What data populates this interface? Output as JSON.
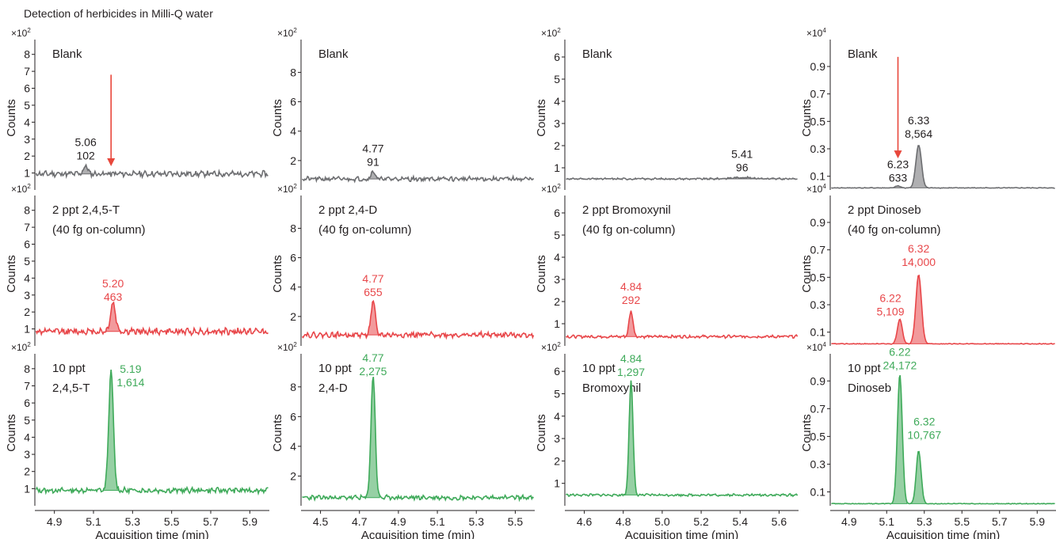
{
  "figure_title": "Detection of herbicides in Milli-Q water",
  "ylabel": "Counts",
  "xlabel": "Acquisition time (min)",
  "colors": {
    "blank": "#6d6e71",
    "low": "#e8474a",
    "high": "#3faa5a",
    "arrow": "#e8473b",
    "text": "#231f20"
  },
  "chart_data": [
    {
      "type": "line",
      "column": 0,
      "compound": "2,4,5-T",
      "xticks": [
        "4.9",
        "5.1",
        "5.3",
        "5.5",
        "5.7",
        "5.9"
      ],
      "xlim": [
        4.8,
        6.0
      ],
      "multiplier_label": "×10",
      "multiplier_exp": "2",
      "ylim": [
        0,
        8.5
      ],
      "yticks": [
        "1",
        "2",
        "3",
        "4",
        "5",
        "6",
        "7",
        "8"
      ],
      "rows": [
        {
          "label": [
            "Blank"
          ],
          "series": "blank",
          "baseline": 0.95,
          "noise": 0.13,
          "seed": 11,
          "peaks": [
            {
              "rt": 5.06,
              "height": 0.5,
              "width": 0.01,
              "value": "102",
              "label_at": [
                5.06,
                2.6
              ]
            }
          ],
          "peak_labels": [
            {
              "rt": "5.06",
              "area": "102"
            }
          ],
          "arrow": {
            "x": 5.19,
            "from": 6.8,
            "to": 1.4
          }
        },
        {
          "label": [
            "2 ppt 2,4,5-T",
            "(40 fg on-column)"
          ],
          "series": "low",
          "baseline": 0.85,
          "noise": 0.15,
          "seed": 12,
          "peaks": [
            {
              "rt": 5.2,
              "height": 1.65,
              "width": 0.013,
              "value": "463",
              "label_at": [
                5.2,
                3.45
              ]
            }
          ],
          "peak_labels": [
            {
              "rt": "5.20",
              "area": "463"
            }
          ]
        },
        {
          "label": [
            "10 ppt",
            "2,4,5-T"
          ],
          "series": "high",
          "baseline": 0.9,
          "noise": 0.12,
          "seed": 13,
          "peaks": [
            {
              "rt": 5.19,
              "height": 6.9,
              "width": 0.012,
              "value": "1,614",
              "label_at": [
                5.29,
                7.75
              ]
            }
          ],
          "peak_labels": [
            {
              "rt": "5.19",
              "area": "1,614"
            }
          ]
        }
      ]
    },
    {
      "type": "line",
      "column": 1,
      "compound": "2,4-D",
      "xticks": [
        "4.5",
        "4.7",
        "4.9",
        "5.1",
        "5.3",
        "5.5"
      ],
      "xlim": [
        4.4,
        5.6
      ],
      "multiplier_label": "×10",
      "multiplier_exp": "2",
      "ylim": [
        0,
        9.8
      ],
      "yticks": [
        "2",
        "4",
        "6",
        "8"
      ],
      "rows": [
        {
          "label": [
            "Blank"
          ],
          "series": "blank",
          "baseline": 0.75,
          "noise": 0.12,
          "seed": 21,
          "peaks": [
            {
              "rt": 4.77,
              "height": 0.55,
              "width": 0.01,
              "value": "91",
              "label_at": [
                4.77,
                2.55
              ]
            }
          ],
          "peak_labels": [
            {
              "rt": "4.77",
              "area": "91"
            }
          ]
        },
        {
          "label": [
            "2 ppt 2,4-D",
            "(40 fg on-column)"
          ],
          "series": "low",
          "baseline": 0.75,
          "noise": 0.14,
          "seed": 22,
          "peaks": [
            {
              "rt": 4.77,
              "height": 2.25,
              "width": 0.011,
              "value": "655",
              "label_at": [
                4.77,
                4.3
              ]
            }
          ],
          "peak_labels": [
            {
              "rt": "4.77",
              "area": "655"
            }
          ]
        },
        {
          "label": [
            "10 ppt",
            "2,4-D"
          ],
          "series": "high",
          "baseline": 0.55,
          "noise": 0.12,
          "seed": 23,
          "peaks": [
            {
              "rt": 4.77,
              "height": 8.2,
              "width": 0.011,
              "value": "2,275",
              "label_at": [
                4.77,
                9.7
              ]
            }
          ],
          "peak_labels": [
            {
              "rt": "4.77",
              "area": "2,275"
            }
          ]
        }
      ]
    },
    {
      "type": "line",
      "column": 2,
      "compound": "Bromoxynil",
      "xticks": [
        "4.6",
        "4.8",
        "5.0",
        "5.2",
        "5.4",
        "5.6"
      ],
      "xlim": [
        4.5,
        5.7
      ],
      "multiplier_label": "×10",
      "multiplier_exp": "2",
      "ylim": [
        0,
        6.5
      ],
      "yticks": [
        "1",
        "2",
        "3",
        "4",
        "5",
        "6"
      ],
      "rows": [
        {
          "label": [
            "Blank"
          ],
          "series": "blank",
          "baseline": 0.5,
          "noise": 0.03,
          "seed": 31,
          "peaks": [
            {
              "rt": 5.41,
              "height": 0.06,
              "width": 0.06,
              "value": "96",
              "label_at": [
                5.41,
                1.45
              ]
            }
          ],
          "peak_labels": [
            {
              "rt": "5.41",
              "area": "96"
            }
          ]
        },
        {
          "label": [
            "2 ppt Bromoxynil",
            "(40 fg on-column)"
          ],
          "series": "low",
          "baseline": 0.42,
          "noise": 0.05,
          "seed": 32,
          "peaks": [
            {
              "rt": 4.84,
              "height": 1.15,
              "width": 0.01,
              "value": "292",
              "label_at": [
                4.84,
                2.5
              ]
            }
          ],
          "peak_labels": [
            {
              "rt": "4.84",
              "area": "292"
            }
          ]
        },
        {
          "label": [
            "10 ppt",
            "Bromoxynil"
          ],
          "series": "high",
          "baseline": 0.48,
          "noise": 0.04,
          "seed": 33,
          "peaks": [
            {
              "rt": 4.84,
              "height": 5.15,
              "width": 0.01,
              "value": "1,297",
              "label_at": [
                4.84,
                6.4
              ]
            }
          ],
          "peak_labels": [
            {
              "rt": "4.84",
              "area": "1,297"
            }
          ]
        }
      ]
    },
    {
      "type": "line",
      "column": 3,
      "compound": "Dinoseb",
      "xticks": [
        "4.9",
        "5.1",
        "5.3",
        "5.5",
        "5.7",
        "5.9"
      ],
      "xlim": [
        4.8,
        6.0
      ],
      "multiplier_label": "×10",
      "multiplier_exp": "4",
      "ylim": [
        0,
        1.05
      ],
      "yticks": [
        "0.1",
        "0.3",
        "0.5",
        "0.7",
        "0.9"
      ],
      "rows": [
        {
          "label": [
            "Blank"
          ],
          "series": "blank",
          "baseline": 0.015,
          "noise": 0.002,
          "seed": 41,
          "peaks": [
            {
              "rt": 5.16,
              "height": 0.015,
              "width": 0.012,
              "value": "633",
              "label_at": [
                5.16,
                0.16
              ]
            },
            {
              "rt": 5.27,
              "height": 0.31,
              "width": 0.015,
              "value": "8,564",
              "label_at": [
                5.27,
                0.48
              ]
            }
          ],
          "peak_labels": [
            {
              "rt": "6.23",
              "area": "633"
            },
            {
              "rt": "6.33",
              "area": "8,564"
            }
          ],
          "arrow": {
            "x": 5.16,
            "from": 0.97,
            "to": 0.23
          }
        },
        {
          "label": [
            "2 ppt Dinoseb",
            "(40 fg on-column)"
          ],
          "series": "low",
          "baseline": 0.015,
          "noise": 0.002,
          "seed": 42,
          "peaks": [
            {
              "rt": 5.17,
              "height": 0.18,
              "width": 0.013,
              "value": "5,109",
              "label_at": [
                5.12,
                0.32
              ]
            },
            {
              "rt": 5.27,
              "height": 0.5,
              "width": 0.015,
              "value": "14,000",
              "label_at": [
                5.27,
                0.68
              ]
            }
          ],
          "peak_labels": [
            {
              "rt": "6.22",
              "area": "5,109"
            },
            {
              "rt": "6.32",
              "area": "14,000"
            }
          ]
        },
        {
          "label": [
            "10 ppt",
            "Dinoseb"
          ],
          "series": "high",
          "baseline": 0.015,
          "noise": 0.002,
          "seed": 43,
          "peaks": [
            {
              "rt": 5.17,
              "height": 0.93,
              "width": 0.013,
              "value": "24,172",
              "label_at": [
                5.17,
                1.08
              ]
            },
            {
              "rt": 5.27,
              "height": 0.38,
              "width": 0.013,
              "value": "10,767",
              "label_at": [
                5.3,
                0.58
              ]
            }
          ],
          "peak_labels": [
            {
              "rt": "6.22",
              "area": "24,172"
            },
            {
              "rt": "6.32",
              "area": "10,767"
            }
          ]
        }
      ]
    }
  ]
}
